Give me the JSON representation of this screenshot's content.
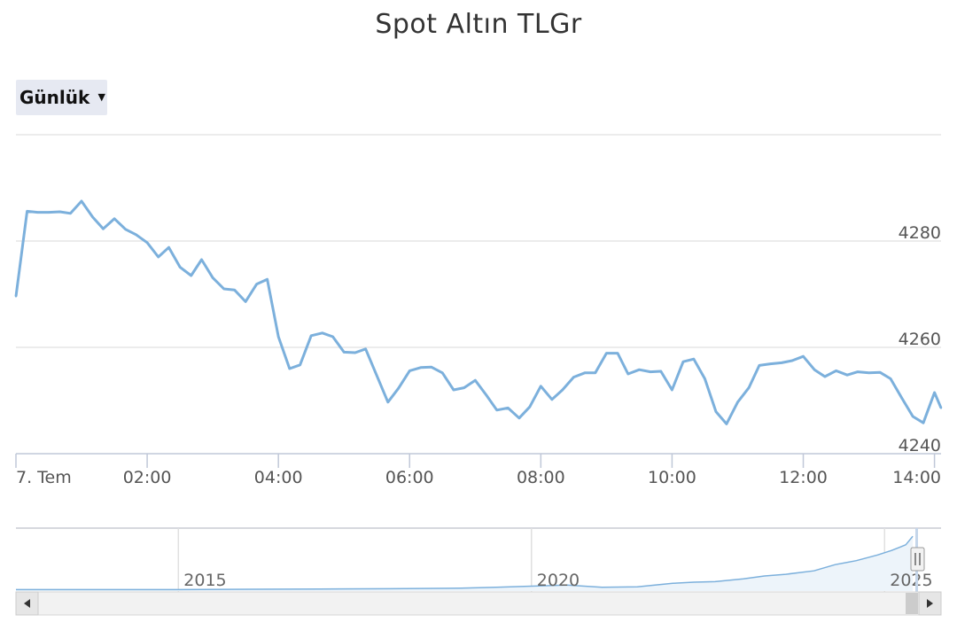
{
  "title": "Spot Altın TLGr",
  "period_selector": {
    "label": "Günlük",
    "caret_icon": "caret-down-icon"
  },
  "colors": {
    "line": "#7cb0dc",
    "grid": "#e6e6e6",
    "navigator_fill": "#edf4fa"
  },
  "chart_data": {
    "type": "line",
    "title": "Spot Altın TLGr",
    "x_tick_labels": [
      "7. Tem",
      "02:00",
      "04:00",
      "06:00",
      "08:00",
      "10:00",
      "12:00",
      "14:00"
    ],
    "x_range": [
      0.0,
      14.1
    ],
    "y_tick_labels": [
      "4240",
      "4260",
      "4280"
    ],
    "y_range": [
      4240,
      4300
    ],
    "grid": true,
    "series": [
      {
        "x": [
          0.0,
          0.17,
          0.33,
          0.5,
          0.67,
          0.83,
          1.0,
          1.17,
          1.33,
          1.5,
          1.67,
          1.83,
          2.0,
          2.17,
          2.33,
          2.5,
          2.67,
          2.83,
          3.0,
          3.17,
          3.33,
          3.5,
          3.67,
          3.83,
          4.0,
          4.17,
          4.33,
          4.5,
          4.67,
          4.83,
          5.0,
          5.17,
          5.33,
          5.5,
          5.67,
          5.83,
          6.0,
          6.17,
          6.33,
          6.5,
          6.67,
          6.83,
          7.0,
          7.17,
          7.33,
          7.5,
          7.67,
          7.83,
          8.0,
          8.17,
          8.33,
          8.5,
          8.67,
          8.83,
          9.0,
          9.17,
          9.33,
          9.5,
          9.67,
          9.83,
          10.0,
          10.17,
          10.33,
          10.5,
          10.67,
          10.83,
          11.0,
          11.17,
          11.33,
          11.5,
          11.67,
          11.83,
          12.0,
          12.17,
          12.33,
          12.5,
          12.67,
          12.83,
          13.0,
          13.17,
          13.33,
          13.5,
          13.67,
          13.83,
          14.0,
          14.1
        ],
        "values": [
          4269.6,
          4285.6,
          4285.4,
          4285.4,
          4285.5,
          4285.2,
          4287.5,
          4284.5,
          4282.3,
          4284.2,
          4282.2,
          4281.2,
          4279.7,
          4277.0,
          4278.8,
          4275.1,
          4273.5,
          4276.5,
          4273.1,
          4271.0,
          4270.8,
          4268.6,
          4271.9,
          4272.8,
          4262.0,
          4256.0,
          4256.7,
          4262.2,
          4262.7,
          4262.0,
          4259.1,
          4259.0,
          4259.7,
          4254.7,
          4249.7,
          4252.3,
          4255.6,
          4256.2,
          4256.3,
          4255.2,
          4252.0,
          4252.4,
          4253.8,
          4251.0,
          4248.2,
          4248.6,
          4246.7,
          4248.8,
          4252.7,
          4250.2,
          4252.0,
          4254.4,
          4255.2,
          4255.2,
          4258.9,
          4258.9,
          4255.0,
          4255.8,
          4255.4,
          4255.5,
          4252.0,
          4257.3,
          4257.8,
          4254.1,
          4247.9,
          4245.6,
          4249.7,
          4252.4,
          4256.6,
          4256.9,
          4257.1,
          4257.5,
          4258.3,
          4255.8,
          4254.5,
          4255.6,
          4254.8,
          4255.4,
          4255.2,
          4255.3,
          4254.1,
          4250.5,
          4247.0,
          4245.8,
          4251.5,
          4248.6
        ]
      }
    ],
    "navigator": {
      "x_tick_labels": [
        "2015",
        "2020",
        "2025"
      ],
      "x_range": [
        2012.7,
        2025.8
      ],
      "x": [
        2012.7,
        2014.0,
        2015.0,
        2016.0,
        2017.0,
        2018.0,
        2019.0,
        2019.5,
        2020.0,
        2020.5,
        2021.0,
        2021.5,
        2022.0,
        2022.3,
        2022.6,
        2023.0,
        2023.3,
        2023.6,
        2024.0,
        2024.3,
        2024.6,
        2024.9,
        2025.1,
        2025.3,
        2025.4
      ],
      "values": [
        0.01,
        0.01,
        0.01,
        0.015,
        0.02,
        0.025,
        0.035,
        0.05,
        0.07,
        0.09,
        0.05,
        0.06,
        0.12,
        0.14,
        0.15,
        0.2,
        0.25,
        0.28,
        0.34,
        0.45,
        0.52,
        0.62,
        0.7,
        0.8,
        0.95
      ]
    }
  }
}
